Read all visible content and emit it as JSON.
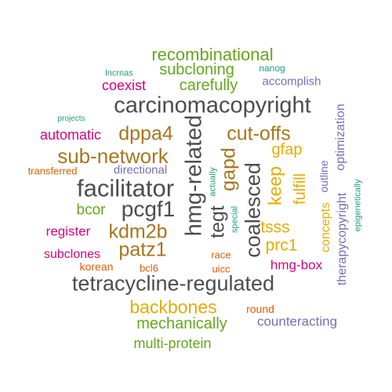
{
  "colors": {
    "dark_gray": "#4d4d4d",
    "brown": "#a6761d",
    "gold": "#e6ab02",
    "green": "#66a61e",
    "magenta": "#d6037a",
    "purple": "#7570b3",
    "orange": "#d95f02",
    "teal": "#1b9e77"
  },
  "words": [
    {
      "text": "recombinational",
      "color": "#66a61e"
    },
    {
      "text": "subcloning",
      "color": "#66a61e"
    },
    {
      "text": "lncrnas",
      "color": "#1b9e77"
    },
    {
      "text": "nanog",
      "color": "#1b9e77"
    },
    {
      "text": "coexist",
      "color": "#d6037a"
    },
    {
      "text": "carefully",
      "color": "#66a61e"
    },
    {
      "text": "accomplish",
      "color": "#7570b3"
    },
    {
      "text": "carcinomacopyright",
      "color": "#4d4d4d"
    },
    {
      "text": "projects",
      "color": "#1b9e77"
    },
    {
      "text": "automatic",
      "color": "#d6037a"
    },
    {
      "text": "dppa4",
      "color": "#a6761d"
    },
    {
      "text": "cut-offs",
      "color": "#a6761d"
    },
    {
      "text": "sub-network",
      "color": "#a6761d"
    },
    {
      "text": "gfap",
      "color": "#e6ab02"
    },
    {
      "text": "transferred",
      "color": "#d95f02"
    },
    {
      "text": "directional",
      "color": "#7570b3"
    },
    {
      "text": "facilitator",
      "color": "#4d4d4d"
    },
    {
      "text": "pcgf1",
      "color": "#4d4d4d"
    },
    {
      "text": "bcor",
      "color": "#66a61e"
    },
    {
      "text": "register",
      "color": "#d6037a"
    },
    {
      "text": "kdm2b",
      "color": "#a6761d"
    },
    {
      "text": "tsss",
      "color": "#e6ab02"
    },
    {
      "text": "prc1",
      "color": "#e6ab02"
    },
    {
      "text": "patz1",
      "color": "#a6761d"
    },
    {
      "text": "subclones",
      "color": "#d6037a"
    },
    {
      "text": "race",
      "color": "#d95f02"
    },
    {
      "text": "korean",
      "color": "#d95f02"
    },
    {
      "text": "bcl6",
      "color": "#d95f02"
    },
    {
      "text": "uicc",
      "color": "#d95f02"
    },
    {
      "text": "hmg-box",
      "color": "#d6037a"
    },
    {
      "text": "tetracycline-regulated",
      "color": "#4d4d4d"
    },
    {
      "text": "backbones",
      "color": "#e6ab02"
    },
    {
      "text": "round",
      "color": "#d95f02"
    },
    {
      "text": "mechanically",
      "color": "#66a61e"
    },
    {
      "text": "counteracting",
      "color": "#7570b3"
    },
    {
      "text": "multi-protein",
      "color": "#66a61e"
    },
    {
      "text": "hmg-related",
      "color": "#4d4d4d"
    },
    {
      "text": "tegt",
      "color": "#4d4d4d"
    },
    {
      "text": "gapd",
      "color": "#a6761d"
    },
    {
      "text": "coalesced",
      "color": "#4d4d4d"
    },
    {
      "text": "actually",
      "color": "#1b9e77"
    },
    {
      "text": "special",
      "color": "#1b9e77"
    },
    {
      "text": "keep",
      "color": "#e6ab02"
    },
    {
      "text": "fulfill",
      "color": "#e6ab02"
    },
    {
      "text": "outline",
      "color": "#7570b3"
    },
    {
      "text": "optimization",
      "color": "#7570b3"
    },
    {
      "text": "concepts",
      "color": "#e6ab02"
    },
    {
      "text": "therapycopyright",
      "color": "#7570b3"
    },
    {
      "text": "epigenetically",
      "color": "#1b9e77"
    }
  ]
}
